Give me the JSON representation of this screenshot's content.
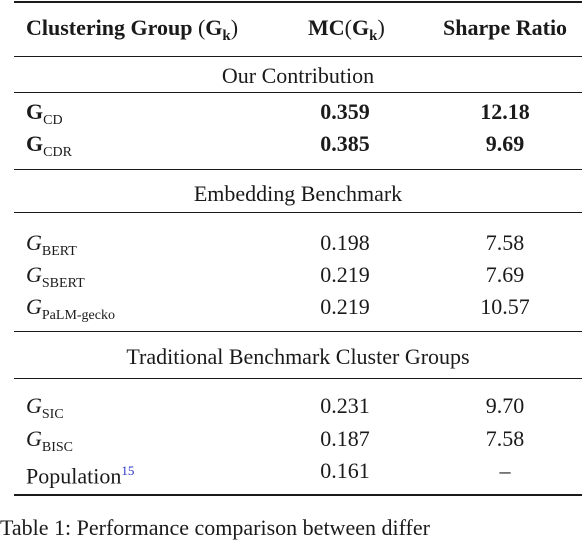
{
  "table": {
    "headers": {
      "col1_text": "Clustering Group",
      "col1_math": "(",
      "col1_G": "G",
      "col1_k": "k",
      "col1_close": ")",
      "col2_text": "MC",
      "col2_open": "(",
      "col2_G": "G",
      "col2_k": "k",
      "col2_close": ")",
      "col3": "Sharpe Ratio"
    },
    "sections": [
      {
        "title": "Our Contribution",
        "rows": [
          {
            "symbol": "G",
            "sub": "CD",
            "mc": "0.359",
            "sharpe": "12.18"
          },
          {
            "symbol": "G",
            "sub": "CDR",
            "mc": "0.385",
            "sharpe": "9.69"
          }
        ]
      },
      {
        "title": "Embedding Benchmark",
        "rows": [
          {
            "symbol": "G",
            "sub": "BERT",
            "mc": "0.198",
            "sharpe": "7.58"
          },
          {
            "symbol": "G",
            "sub": "SBERT",
            "mc": "0.219",
            "sharpe": "7.69"
          },
          {
            "symbol": "G",
            "sub": "PaLM-gecko",
            "mc": "0.219",
            "sharpe": "10.57"
          }
        ]
      },
      {
        "title": "Traditional Benchmark Cluster Groups",
        "rows": [
          {
            "symbol": "G",
            "sub": "SIC",
            "mc": "0.231",
            "sharpe": "9.70"
          },
          {
            "symbol": "G",
            "sub": "BISC",
            "mc": "0.187",
            "sharpe": "7.58"
          },
          {
            "label": "Population",
            "footnote": "15",
            "mc": "0.161",
            "sharpe": "–"
          }
        ]
      }
    ]
  },
  "caption": "Table 1: Performance comparison between differ"
}
